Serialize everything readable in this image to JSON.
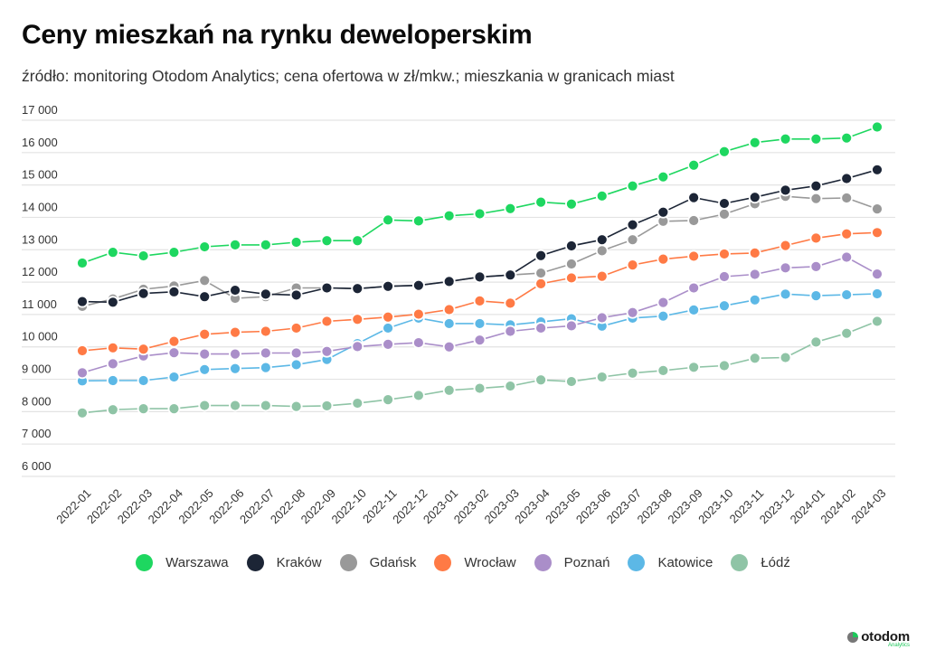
{
  "header": {
    "title": "Ceny mieszkań na rynku deweloperskim",
    "subtitle": "źródło: monitoring Otodom Analytics; cena ofertowa w zł/mkw.; mieszkania w granicach miast"
  },
  "brand": {
    "name": "otodom",
    "sub": "Analytics"
  },
  "chart_data": {
    "type": "line",
    "title": "Ceny mieszkań na rynku deweloperskim",
    "subtitle": "źródło: monitoring Otodom Analytics; cena ofertowa w zł/mkw.; mieszkania w granicach miast",
    "xlabel": "",
    "ylabel": "",
    "ylim": [
      6000,
      17000
    ],
    "yticks": [
      6000,
      7000,
      8000,
      9000,
      10000,
      11000,
      12000,
      13000,
      14000,
      15000,
      16000,
      17000
    ],
    "ytick_labels": [
      "6 000",
      "7 000",
      "8 000",
      "9 000",
      "10 000",
      "11 000",
      "12 000",
      "13 000",
      "14 000",
      "15 000",
      "16 000",
      "17 000"
    ],
    "grid": true,
    "legend_position": "bottom",
    "x": [
      "2022-01",
      "2022-02",
      "2022-03",
      "2022-04",
      "2022-05",
      "2022-06",
      "2022-07",
      "2022-08",
      "2022-09",
      "2022-10",
      "2022-11",
      "2022-12",
      "2023-01",
      "2023-02",
      "2023-03",
      "2023-04",
      "2023-05",
      "2023-06",
      "2023-07",
      "2023-08",
      "2023-09",
      "2023-10",
      "2023-11",
      "2023-12",
      "2024-01",
      "2024-02",
      "2024-03"
    ],
    "series": [
      {
        "name": "Warszawa",
        "color": "#1ed760",
        "values": [
          12590,
          12920,
          12810,
          12920,
          13090,
          13150,
          13150,
          13230,
          13280,
          13280,
          13920,
          13890,
          14050,
          14110,
          14270,
          14470,
          14410,
          14660,
          14970,
          15250,
          15610,
          16030,
          16310,
          16420,
          16420,
          16450,
          16790
        ]
      },
      {
        "name": "Kraków",
        "color": "#1c2536",
        "values": [
          11400,
          11380,
          11650,
          11700,
          11550,
          11750,
          11630,
          11600,
          11820,
          11800,
          11870,
          11900,
          12020,
          12160,
          12220,
          12820,
          13120,
          13310,
          13770,
          14160,
          14610,
          14430,
          14620,
          14840,
          14970,
          15200,
          15470
        ]
      },
      {
        "name": "Gdańsk",
        "color": "#999999",
        "values": [
          11250,
          11480,
          11780,
          11880,
          12050,
          11500,
          11550,
          11820,
          11820,
          11800,
          11870,
          11900,
          12020,
          12160,
          12220,
          12280,
          12560,
          12970,
          13310,
          13880,
          13900,
          14100,
          14420,
          14650,
          14580,
          14600,
          14260
        ]
      },
      {
        "name": "Wrocław",
        "color": "#ff7a45",
        "values": [
          9880,
          9970,
          9930,
          10170,
          10390,
          10450,
          10480,
          10580,
          10790,
          10850,
          10920,
          11010,
          11150,
          11420,
          11350,
          11950,
          12130,
          12180,
          12530,
          12710,
          12800,
          12870,
          12900,
          13130,
          13360,
          13490,
          13530
        ]
      },
      {
        "name": "Poznań",
        "color": "#aa8ec9",
        "values": [
          9200,
          9480,
          9720,
          9820,
          9780,
          9780,
          9810,
          9810,
          9860,
          10010,
          10080,
          10130,
          10000,
          10210,
          10480,
          10580,
          10650,
          10900,
          11060,
          11370,
          11820,
          12170,
          12240,
          12440,
          12480,
          12770,
          12250
        ]
      },
      {
        "name": "Katowice",
        "color": "#5cb8e6",
        "values": [
          8950,
          8960,
          8960,
          9070,
          9300,
          9330,
          9360,
          9450,
          9610,
          10100,
          10580,
          10890,
          10720,
          10720,
          10680,
          10770,
          10870,
          10640,
          10890,
          10950,
          11140,
          11270,
          11450,
          11630,
          11580,
          11610,
          11640
        ]
      },
      {
        "name": "Łódź",
        "color": "#8fc4a6",
        "values": [
          7960,
          8060,
          8090,
          8090,
          8190,
          8190,
          8190,
          8160,
          8180,
          8260,
          8370,
          8500,
          8660,
          8720,
          8790,
          8980,
          8930,
          9070,
          9190,
          9270,
          9370,
          9420,
          9650,
          9670,
          10150,
          10420,
          10790
        ]
      }
    ]
  }
}
